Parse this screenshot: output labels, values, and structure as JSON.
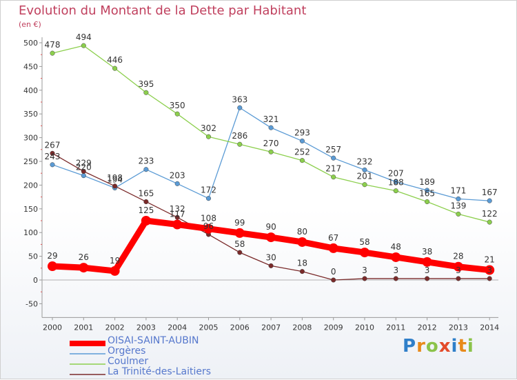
{
  "title": "Evolution du Montant de la Dette par Habitant",
  "unit": "(en €)",
  "logo": "Proxiti",
  "chart_data": {
    "type": "line",
    "title": "Evolution du Montant de la Dette par Habitant",
    "ylabel": "(en €)",
    "xlabel": "",
    "ylim": [
      -50,
      500
    ],
    "yticks": [
      -50,
      0,
      50,
      100,
      150,
      200,
      250,
      300,
      350,
      400,
      450,
      500
    ],
    "grid": false,
    "legend_position": "bottom-left",
    "x": [
      "2000",
      "2001",
      "2002",
      "2003",
      "2004",
      "2005",
      "2006",
      "2007",
      "2008",
      "2009",
      "2010",
      "2011",
      "2012",
      "2013",
      "2014"
    ],
    "series": [
      {
        "name": "Orgères",
        "color": "#5b9bd5",
        "values": [
          243,
          220,
          194,
          233,
          203,
          172,
          363,
          321,
          293,
          257,
          232,
          207,
          189,
          171,
          167
        ]
      },
      {
        "name": "Coulmer",
        "color": "#8ccf4d",
        "values": [
          478,
          494,
          446,
          395,
          350,
          302,
          286,
          270,
          252,
          217,
          201,
          188,
          165,
          139,
          122
        ]
      },
      {
        "name": "La Trinité-des-Laitiers",
        "color": "#7a2a2a",
        "values": [
          267,
          229,
          198,
          165,
          132,
          96,
          58,
          30,
          18,
          0,
          3,
          3,
          3,
          3,
          3
        ]
      },
      {
        "name": "OISAI-SAINT-AUBIN",
        "color": "#ff0000",
        "values": [
          29,
          26,
          19,
          125,
          117,
          108,
          99,
          90,
          80,
          67,
          58,
          48,
          38,
          28,
          21
        ]
      }
    ]
  }
}
